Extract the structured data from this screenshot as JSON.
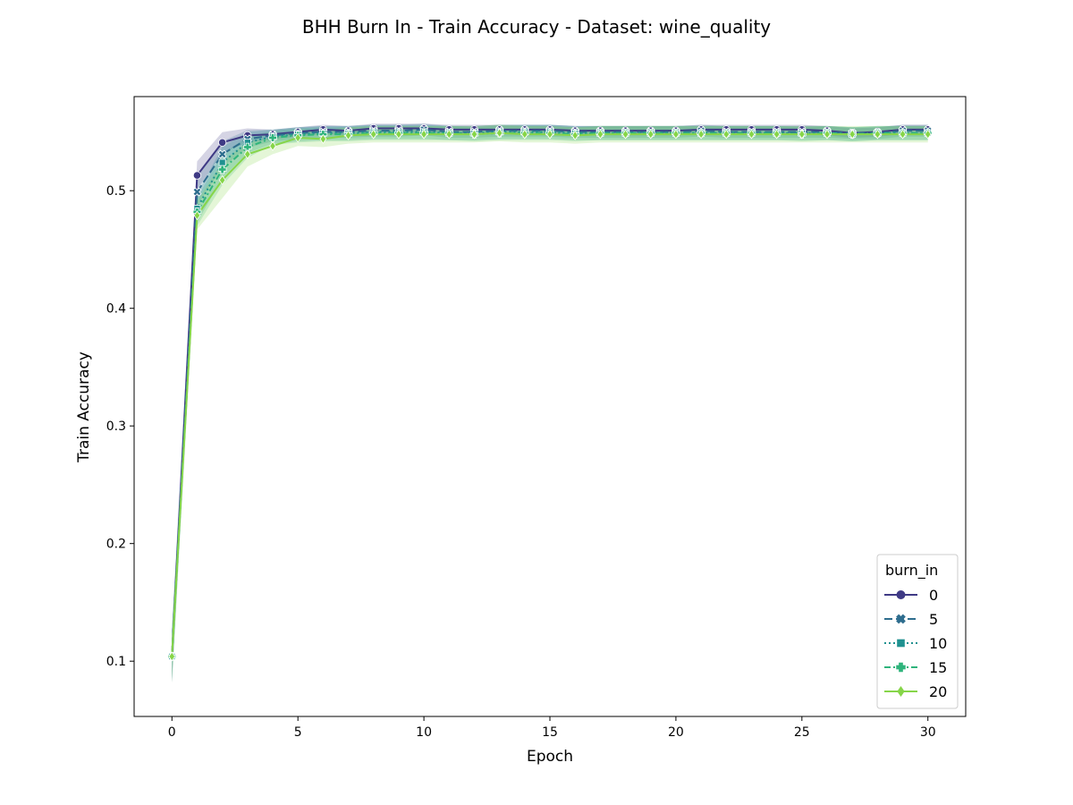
{
  "chart_data": {
    "type": "line",
    "title": "BHH Burn In - Train Accuracy - Dataset: wine_quality",
    "xlabel": "Epoch",
    "ylabel": "Train Accuracy",
    "xlim": [
      -1.5,
      31.5
    ],
    "ylim": [
      0.053,
      0.58
    ],
    "xticks": [
      0,
      5,
      10,
      15,
      20,
      25,
      30
    ],
    "yticks": [
      0.1,
      0.2,
      0.3,
      0.4,
      0.5
    ],
    "xtick_labels": [
      "0",
      "5",
      "10",
      "15",
      "20",
      "25",
      "30"
    ],
    "ytick_labels": [
      "0.1",
      "0.2",
      "0.3",
      "0.4",
      "0.5"
    ],
    "grid": false,
    "legend": {
      "title": "burn_in",
      "position": "lower-right"
    },
    "x": [
      0,
      1,
      2,
      3,
      4,
      5,
      6,
      7,
      8,
      9,
      10,
      11,
      12,
      13,
      14,
      15,
      16,
      17,
      18,
      19,
      20,
      21,
      22,
      23,
      24,
      25,
      26,
      27,
      28,
      29,
      30
    ],
    "series": [
      {
        "name": "0",
        "color": "#3f3a85",
        "dash": "none",
        "marker": "circle",
        "values": [
          0.104,
          0.513,
          0.541,
          0.547,
          0.548,
          0.55,
          0.552,
          0.551,
          0.553,
          0.553,
          0.553,
          0.552,
          0.552,
          0.552,
          0.552,
          0.552,
          0.551,
          0.551,
          0.551,
          0.551,
          0.551,
          0.552,
          0.552,
          0.552,
          0.552,
          0.552,
          0.551,
          0.549,
          0.55,
          0.552,
          0.552
        ],
        "band": 0.004
      },
      {
        "name": "5",
        "color": "#2e6d8e",
        "dash": "9,4",
        "marker": "x",
        "values": [
          0.104,
          0.499,
          0.531,
          0.544,
          0.547,
          0.549,
          0.55,
          0.55,
          0.551,
          0.551,
          0.552,
          0.55,
          0.55,
          0.551,
          0.551,
          0.551,
          0.55,
          0.55,
          0.55,
          0.55,
          0.55,
          0.551,
          0.55,
          0.55,
          0.55,
          0.55,
          0.55,
          0.549,
          0.549,
          0.551,
          0.551
        ],
        "band": 0.005
      },
      {
        "name": "10",
        "color": "#1f9190",
        "dash": "2,3",
        "marker": "square",
        "values": [
          0.104,
          0.485,
          0.524,
          0.541,
          0.546,
          0.548,
          0.549,
          0.549,
          0.55,
          0.55,
          0.55,
          0.549,
          0.549,
          0.55,
          0.55,
          0.55,
          0.549,
          0.549,
          0.549,
          0.549,
          0.549,
          0.549,
          0.549,
          0.549,
          0.549,
          0.549,
          0.549,
          0.548,
          0.549,
          0.549,
          0.549
        ],
        "band": 0.006
      },
      {
        "name": "15",
        "color": "#2fb47c",
        "dash": "7,3,2,3",
        "marker": "plus",
        "values": [
          0.104,
          0.482,
          0.518,
          0.537,
          0.545,
          0.547,
          0.548,
          0.548,
          0.549,
          0.549,
          0.549,
          0.549,
          0.548,
          0.549,
          0.549,
          0.549,
          0.548,
          0.549,
          0.549,
          0.549,
          0.549,
          0.549,
          0.549,
          0.549,
          0.549,
          0.548,
          0.549,
          0.548,
          0.549,
          0.549,
          0.549
        ],
        "band": 0.006
      },
      {
        "name": "20",
        "color": "#86d549",
        "dash": "none",
        "marker": "diamond",
        "values": [
          0.104,
          0.479,
          0.509,
          0.531,
          0.538,
          0.545,
          0.544,
          0.547,
          0.548,
          0.548,
          0.548,
          0.548,
          0.548,
          0.549,
          0.548,
          0.548,
          0.547,
          0.548,
          0.548,
          0.548,
          0.548,
          0.548,
          0.548,
          0.548,
          0.548,
          0.548,
          0.548,
          0.548,
          0.548,
          0.548,
          0.548
        ],
        "band": 0.007
      }
    ]
  }
}
